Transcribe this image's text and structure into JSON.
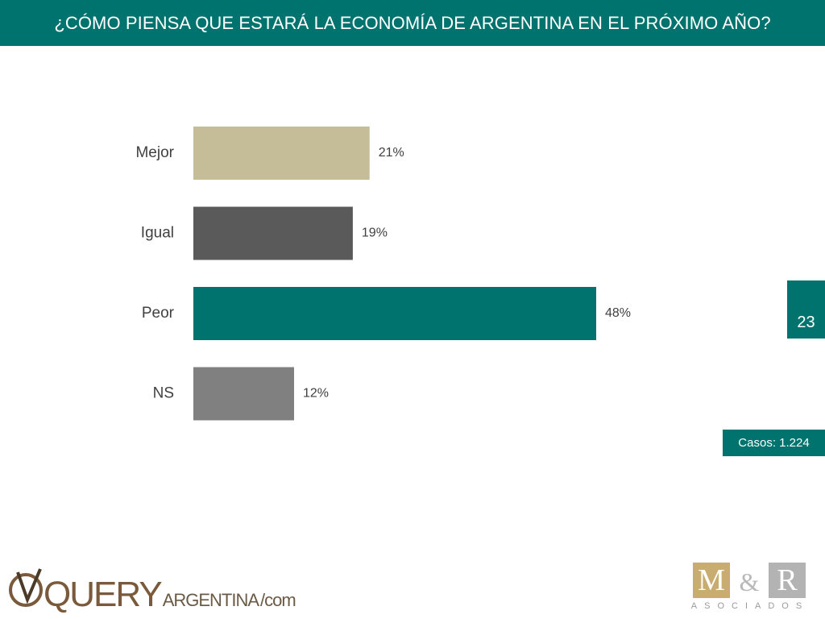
{
  "header": {
    "title": "¿CÓMO PIENSA QUE ESTARÁ LA ECONOMÍA DE ARGENTINA EN EL PRÓXIMO AÑO?"
  },
  "chart_data": {
    "type": "bar",
    "orientation": "horizontal",
    "categories": [
      "Mejor",
      "Igual",
      "Peor",
      "NS"
    ],
    "values": [
      21,
      19,
      48,
      12
    ],
    "value_labels": [
      "21%",
      "19%",
      "48%",
      "12%"
    ],
    "unit": "%",
    "colors": [
      "#c5bd98",
      "#5a5a5a",
      "#00736e",
      "#808080"
    ],
    "xlim": [
      0,
      50
    ],
    "grid": false,
    "legend": "none",
    "title": "",
    "xlabel": "",
    "ylabel": ""
  },
  "footer": {
    "page_number": "23",
    "cases": "Casos: 1.224",
    "logo_left": {
      "text_main": "QUERY",
      "text_sub": "ARGENTINA",
      "text_domain": "/com"
    },
    "logo_right": {
      "letter_m": "M",
      "amp": "&",
      "letter_r": "R",
      "subtitle": "ASOCIADOS"
    }
  },
  "colors": {
    "accent": "#00736e",
    "text": "#404040"
  }
}
